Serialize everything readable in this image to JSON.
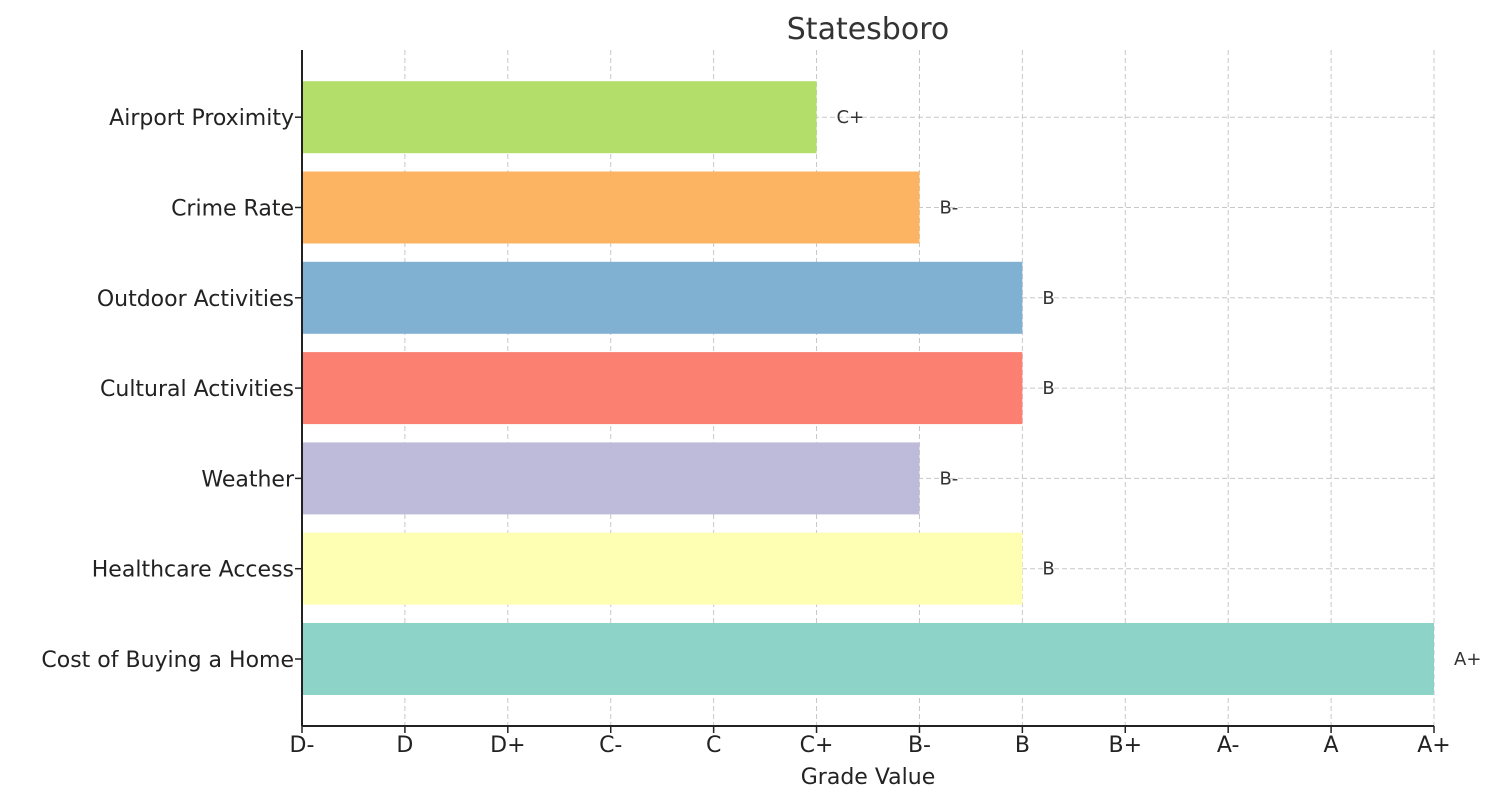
{
  "chart_data": {
    "type": "bar",
    "orientation": "horizontal",
    "title": "Statesboro",
    "xlabel": "Grade Value",
    "ylabel": "",
    "x_ticks": [
      "D-",
      "D",
      "D+",
      "C-",
      "C",
      "C+",
      "B-",
      "B",
      "B+",
      "A-",
      "A",
      "A+"
    ],
    "xlim": [
      0,
      11
    ],
    "grid": true,
    "categories": [
      "Cost of Buying a Home",
      "Healthcare Access",
      "Weather",
      "Cultural Activities",
      "Outdoor Activities",
      "Crime Rate",
      "Airport Proximity"
    ],
    "values": [
      11,
      7,
      6,
      7,
      7,
      6,
      5
    ],
    "value_labels": [
      "A+",
      "B",
      "B-",
      "B",
      "B",
      "B-",
      "C+"
    ],
    "colors": [
      "#8dd3c7",
      "#ffffb3",
      "#bebada",
      "#fb8072",
      "#80b1d3",
      "#fdb462",
      "#b3de69"
    ]
  }
}
